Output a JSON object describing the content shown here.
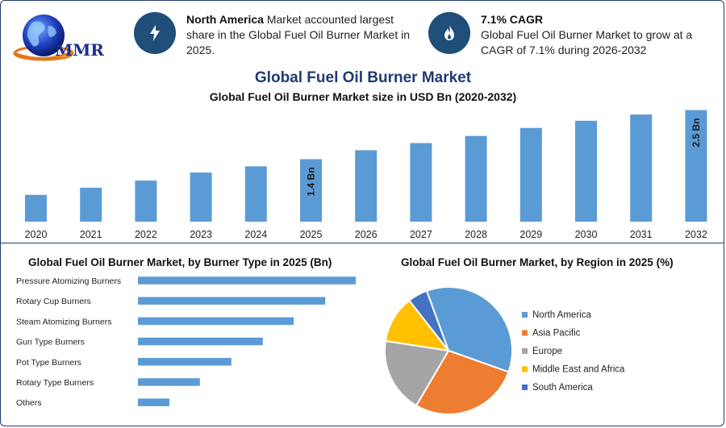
{
  "logo": {
    "text": "MMR",
    "icon": "globe-icon"
  },
  "info_left": {
    "icon": "bolt-icon",
    "bold": "North America",
    "text": " Market accounted largest share in the Global Fuel Oil Burner Market in 2025."
  },
  "info_right": {
    "icon": "flame-icon",
    "bold": "7.1% CAGR",
    "text": "Global Fuel Oil Burner Market to grow at a CAGR of 7.1% during 2026-2032"
  },
  "main_title": "Global Fuel Oil Burner Market",
  "colors": {
    "bar": "#5b9bd5",
    "accent": "#1f4e79",
    "title": "#1f3b73"
  },
  "chart_data": [
    {
      "type": "bar",
      "title": "Global Fuel Oil Burner Market size in USD Bn (2020-2032)",
      "categories": [
        "2020",
        "2021",
        "2022",
        "2023",
        "2024",
        "2025",
        "2026",
        "2027",
        "2028",
        "2029",
        "2030",
        "2031",
        "2032"
      ],
      "values": [
        0.6,
        0.76,
        0.92,
        1.1,
        1.24,
        1.4,
        1.6,
        1.76,
        1.92,
        2.1,
        2.26,
        2.4,
        2.5
      ],
      "data_labels": [
        {
          "category": "2025",
          "text": "1.4 Bn"
        },
        {
          "category": "2032",
          "text": "2.5 Bn"
        }
      ],
      "ylim": [
        0,
        2.6
      ],
      "grid": false
    },
    {
      "type": "bar",
      "orientation": "horizontal",
      "title": "Global Fuel Oil Burner Market, by Burner Type in 2025 (Bn)",
      "categories": [
        "Pressure Atomizing Burners",
        "Rotary Cup Burners",
        "Steam Atomizing Burners",
        "Gun Type Burners",
        "Pot Type Burners",
        "Rotary Type Burners",
        "Others"
      ],
      "values": [
        0.45,
        0.387,
        0.322,
        0.258,
        0.193,
        0.128,
        0.065
      ],
      "xlim": [
        0,
        0.45
      ],
      "grid": false
    },
    {
      "type": "pie",
      "title": "Global Fuel Oil Burner Market, by Region in 2025 (%)",
      "slices": [
        {
          "label": "North America",
          "value": 36,
          "color": "#5b9bd5"
        },
        {
          "label": "Asia Pacific",
          "value": 28,
          "color": "#ed7d31"
        },
        {
          "label": "Europe",
          "value": 19,
          "color": "#a5a5a5"
        },
        {
          "label": "Middle East and Africa",
          "value": 12,
          "color": "#ffc000"
        },
        {
          "label": "South America",
          "value": 5,
          "color": "#4472c4"
        }
      ],
      "legend": "right"
    }
  ]
}
